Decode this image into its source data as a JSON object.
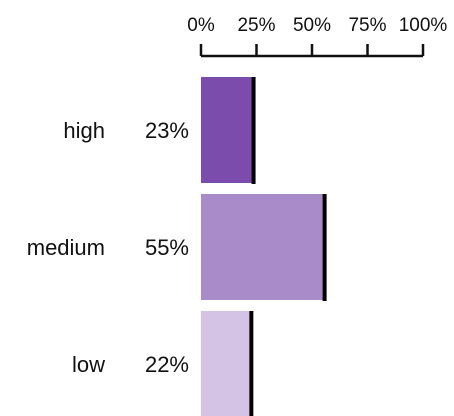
{
  "chart_data": {
    "type": "bar",
    "orientation": "horizontal",
    "title": "",
    "xlabel": "",
    "ylabel": "",
    "xlim": [
      0,
      100
    ],
    "x_axis_position": "top",
    "x_ticks": [
      "0%",
      "25%",
      "50%",
      "75%",
      "100%"
    ],
    "grid": false,
    "categories": [
      "high",
      "medium",
      "low"
    ],
    "values": [
      23,
      55,
      22
    ],
    "value_labels": [
      "23%",
      "55%",
      "22%"
    ],
    "reference_marker": "black vertical line at bar end",
    "colors": [
      "#7b4cab",
      "#a98bca",
      "#d4c3e5"
    ]
  }
}
